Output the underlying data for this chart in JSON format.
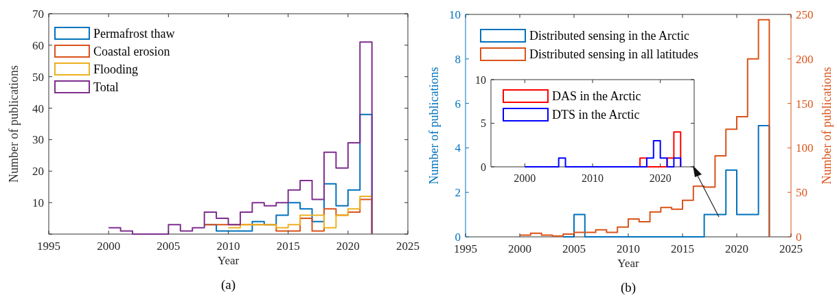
{
  "chart_data": [
    {
      "type": "step",
      "xlabel": "Year",
      "ylabel": "Number of publications",
      "xlim": [
        1995,
        2025
      ],
      "xticks": [
        1995,
        2000,
        2005,
        2010,
        2015,
        2020,
        2025
      ],
      "ylim": [
        0,
        70
      ],
      "yticks": [
        {
          "value": 0,
          "label": null
        },
        10,
        20,
        30,
        40,
        50,
        60,
        70
      ],
      "legend": "top left",
      "annotations": [
        "(a)"
      ],
      "x": [
        2000,
        2001,
        2002,
        2003,
        2004,
        2005,
        2006,
        2007,
        2008,
        2009,
        2010,
        2011,
        2012,
        2013,
        2014,
        2015,
        2016,
        2017,
        2018,
        2019,
        2020,
        2021,
        2022
      ],
      "series": [
        {
          "name": "Permafrost thaw",
          "color": "#0072bd",
          "values": [
            null,
            null,
            null,
            null,
            null,
            null,
            null,
            null,
            3,
            1,
            1,
            1,
            4,
            3,
            6,
            10,
            8,
            4,
            16,
            9,
            14,
            38,
            0
          ]
        },
        {
          "name": "Coastal erosion",
          "color": "#d95319",
          "values": [
            null,
            null,
            null,
            null,
            null,
            null,
            null,
            null,
            3,
            3,
            3,
            3,
            3,
            3,
            1,
            1,
            5,
            1,
            8,
            6,
            7,
            11,
            0
          ]
        },
        {
          "name": "Flooding",
          "color": "#edb120",
          "values": [
            null,
            null,
            null,
            null,
            null,
            null,
            null,
            null,
            null,
            null,
            2,
            3,
            3,
            3,
            2,
            3,
            6,
            6,
            2,
            6,
            8,
            12,
            0
          ]
        },
        {
          "name": "Total",
          "color": "#7e2f8e",
          "values": [
            2,
            1,
            0,
            0,
            0,
            3,
            1,
            2,
            7,
            5,
            3,
            7,
            10,
            9,
            10,
            14,
            17,
            11,
            26,
            21,
            29,
            61,
            0
          ]
        }
      ]
    },
    {
      "type": "step",
      "xlabel": "Year",
      "ylabel": "Number of publications",
      "y2label": "Number of publications",
      "xlim": [
        1995,
        2025
      ],
      "xticks": [
        1995,
        2000,
        2005,
        2010,
        2015,
        2020,
        2025
      ],
      "ylim": [
        0,
        10
      ],
      "yticks": [
        0,
        2,
        4,
        6,
        8,
        10
      ],
      "y2lim": [
        0,
        250
      ],
      "y2ticks": [
        0,
        50,
        100,
        150,
        200,
        250
      ],
      "legend": "top left",
      "annotations": [
        "(b)"
      ],
      "x": [
        2000,
        2001,
        2002,
        2003,
        2004,
        2005,
        2006,
        2007,
        2008,
        2009,
        2010,
        2011,
        2012,
        2013,
        2014,
        2015,
        2016,
        2017,
        2018,
        2019,
        2020,
        2021,
        2022,
        2023
      ],
      "series": [
        {
          "name": "Distributed sensing in the Arctic",
          "color": "#0072bd",
          "values": [
            null,
            null,
            null,
            null,
            0,
            1,
            0,
            0,
            0,
            0,
            0,
            0,
            0,
            0,
            0,
            0,
            0,
            1,
            1,
            3,
            1,
            1,
            5,
            0
          ]
        },
        {
          "name": "Distributed sensing in all latitudes",
          "color": "#d95319",
          "axis": "y2",
          "values": [
            2,
            4,
            2,
            1,
            3,
            5,
            5,
            8,
            5,
            11,
            20,
            17,
            28,
            33,
            31,
            41,
            57,
            56,
            91,
            121,
            135,
            200,
            244,
            0
          ]
        }
      ]
    },
    {
      "type": "step",
      "xlim": [
        1995,
        2025
      ],
      "xticks": [
        2000,
        2010,
        2020
      ],
      "ylim": [
        0,
        10
      ],
      "yticks": [
        0,
        5,
        10
      ],
      "legend": "top left",
      "x": [
        2000,
        2001,
        2002,
        2003,
        2004,
        2005,
        2006,
        2007,
        2008,
        2009,
        2010,
        2011,
        2012,
        2013,
        2014,
        2015,
        2016,
        2017,
        2018,
        2019,
        2020,
        2021,
        2022,
        2023
      ],
      "series": [
        {
          "name": "DAS in the Arctic",
          "color": "#ff0000",
          "values": [
            null,
            null,
            null,
            null,
            null,
            null,
            null,
            null,
            null,
            null,
            null,
            null,
            null,
            null,
            null,
            null,
            0,
            1,
            0,
            0,
            0,
            1,
            4,
            0
          ]
        },
        {
          "name": "DTS in the Arctic",
          "color": "#0000ff",
          "values": [
            0,
            0,
            0,
            0,
            0,
            1,
            0,
            0,
            0,
            0,
            0,
            0,
            0,
            0,
            0,
            0,
            0,
            0,
            1,
            3,
            1,
            0,
            1,
            0
          ]
        }
      ]
    }
  ]
}
